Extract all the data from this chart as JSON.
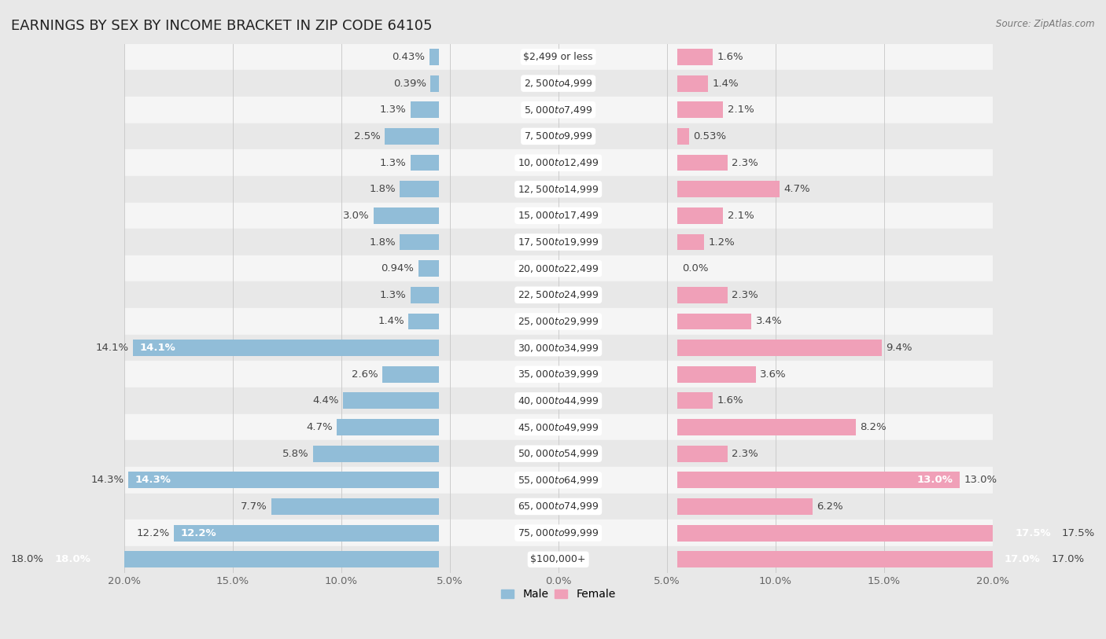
{
  "title": "EARNINGS BY SEX BY INCOME BRACKET IN ZIP CODE 64105",
  "source": "Source: ZipAtlas.com",
  "categories": [
    "$2,499 or less",
    "$2,500 to $4,999",
    "$5,000 to $7,499",
    "$7,500 to $9,999",
    "$10,000 to $12,499",
    "$12,500 to $14,999",
    "$15,000 to $17,499",
    "$17,500 to $19,999",
    "$20,000 to $22,499",
    "$22,500 to $24,999",
    "$25,000 to $29,999",
    "$30,000 to $34,999",
    "$35,000 to $39,999",
    "$40,000 to $44,999",
    "$45,000 to $49,999",
    "$50,000 to $54,999",
    "$55,000 to $64,999",
    "$65,000 to $74,999",
    "$75,000 to $99,999",
    "$100,000+"
  ],
  "male": [
    0.43,
    0.39,
    1.3,
    2.5,
    1.3,
    1.8,
    3.0,
    1.8,
    0.94,
    1.3,
    1.4,
    14.1,
    2.6,
    4.4,
    4.7,
    5.8,
    14.3,
    7.7,
    12.2,
    18.0
  ],
  "female": [
    1.6,
    1.4,
    2.1,
    0.53,
    2.3,
    4.7,
    2.1,
    1.2,
    0.0,
    2.3,
    3.4,
    9.4,
    3.6,
    1.6,
    8.2,
    2.3,
    13.0,
    6.2,
    17.5,
    17.0
  ],
  "male_color": "#91BDD8",
  "female_color": "#F0A0B8",
  "background_color": "#e8e8e8",
  "row_light": "#f5f5f5",
  "row_dark": "#e8e8e8",
  "xlim": 20.0,
  "bar_height": 0.62,
  "title_fontsize": 13,
  "label_fontsize": 9.5,
  "axis_fontsize": 9.5,
  "category_fontsize": 9
}
